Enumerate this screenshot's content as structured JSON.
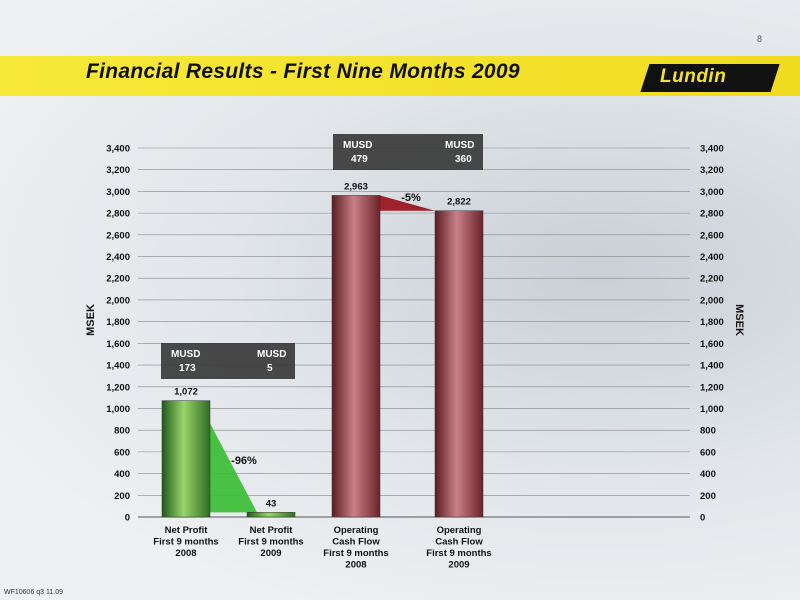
{
  "page_number": "8",
  "title": "Financial Results -  First Nine Months 2009",
  "logo_text": "Lundin",
  "footer": "WF10606 q3 11.09",
  "colors": {
    "title_band": "#f3e22a",
    "green_bar": "#3f8f2f",
    "red_bar": "#8a2f35"
  },
  "chart_data": {
    "type": "bar",
    "ylabel": "MSEK",
    "ylabel_right": "MSEK",
    "ylim": [
      0,
      3400
    ],
    "yticks": [
      "0",
      "200",
      "400",
      "600",
      "800",
      "1,000",
      "1,200",
      "1,400",
      "1,600",
      "1,800",
      "2,000",
      "2,200",
      "2,400",
      "2,600",
      "2,800",
      "3,000",
      "3,200",
      "3,400"
    ],
    "grid": true,
    "categories": [
      [
        "Net Profit",
        "First 9 months",
        "2008"
      ],
      [
        "Net Profit",
        "First 9 months",
        "2009"
      ],
      [
        "Operating",
        "Cash Flow",
        "First 9 months",
        "2008"
      ],
      [
        "Operating",
        "Cash Flow",
        "First 9 months",
        "2009"
      ]
    ],
    "values": [
      1072,
      43,
      2963,
      2822
    ],
    "value_labels": [
      "1,072",
      "43",
      "2,963",
      "2,822"
    ],
    "bar_colors": [
      "green",
      "green",
      "red",
      "red"
    ],
    "annotations": [
      {
        "text": "-96%"
      },
      {
        "text": "-5%"
      }
    ],
    "usd_boxes": [
      {
        "left_label": "MUSD",
        "left_value": "173",
        "right_label": "MUSD",
        "right_value": "5"
      },
      {
        "left_label": "MUSD",
        "left_value": "479",
        "right_label": "MUSD",
        "right_value": "360"
      }
    ]
  }
}
